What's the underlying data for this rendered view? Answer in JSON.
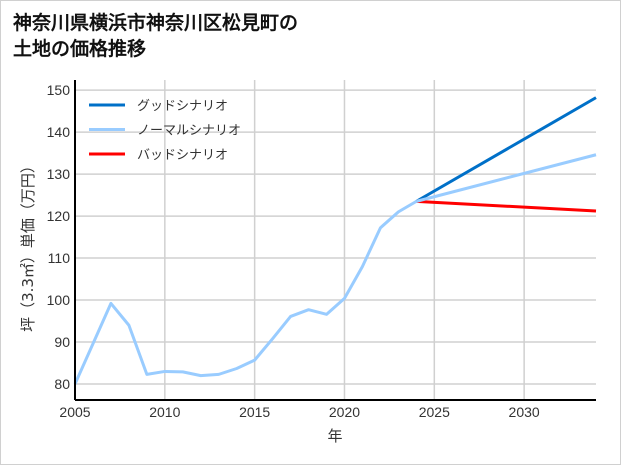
{
  "chart_data": {
    "type": "line",
    "title_line1": "神奈川県横浜市神奈川区松見町の",
    "title_line2": "土地の価格推移",
    "xlabel": "年",
    "ylabel": "坪（3.3㎡）単価（万円）",
    "xlim": [
      2005,
      2034
    ],
    "ylim": [
      76.2,
      152.4
    ],
    "xticks": [
      2005,
      2010,
      2015,
      2020,
      2025,
      2030
    ],
    "yticks": [
      80,
      90,
      100,
      110,
      120,
      130,
      140,
      150
    ],
    "grid": true,
    "legend_position": "top-left",
    "historical": {
      "x": [
        2005,
        2006,
        2007,
        2008,
        2009,
        2010,
        2011,
        2012,
        2013,
        2014,
        2015,
        2016,
        2017,
        2018,
        2019,
        2020,
        2021,
        2022,
        2023,
        2024
      ],
      "y": [
        80.0,
        89.6,
        99.2,
        94.0,
        82.3,
        83.0,
        82.9,
        82.0,
        82.3,
        83.7,
        85.7,
        90.8,
        96.1,
        97.7,
        96.6,
        100.4,
        108.0,
        117.2,
        121.0,
        123.5
      ]
    },
    "series": [
      {
        "name": "グッドシナリオ",
        "color": "#0070c8",
        "x": [
          2024,
          2034
        ],
        "y": [
          123.5,
          148.2
        ]
      },
      {
        "name": "ノーマルシナリオ",
        "color": "#99ccff",
        "x": [
          2024,
          2034
        ],
        "y": [
          123.5,
          134.6
        ]
      },
      {
        "name": "バッドシナリオ",
        "color": "#ff0000",
        "x": [
          2024,
          2034
        ],
        "y": [
          123.5,
          121.2
        ]
      }
    ]
  }
}
